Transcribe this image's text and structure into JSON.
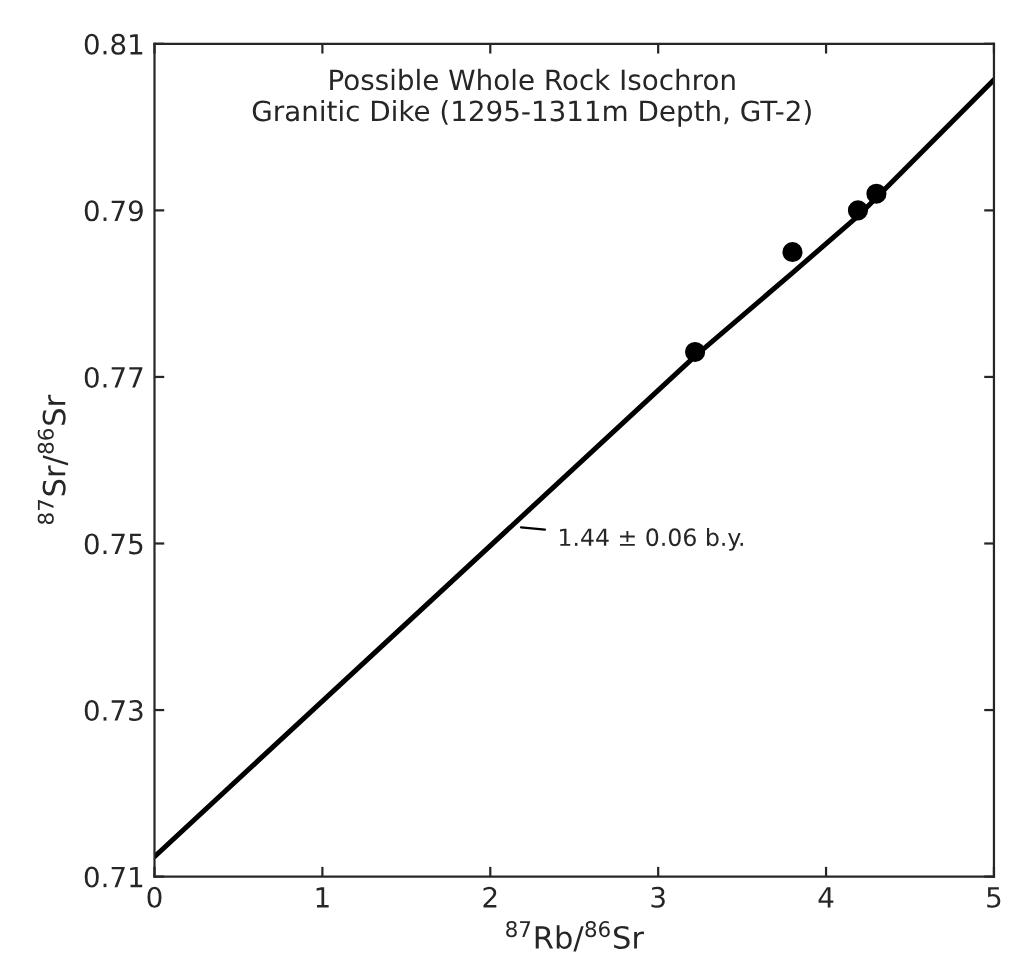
{
  "chart_data": {
    "type": "scatter",
    "title": "Possible Whole Rock Isochron\nGranitic Dike (1295-1311m Depth, GT-2)",
    "xlabel": "$^{87}$Rb/$^{86}$Sr",
    "ylabel": "$^{87}$Sr/$^{86}$Sr",
    "series": [
      {
        "color": "#000000",
        "x": [
          3.22,
          3.8,
          4.19,
          4.3
        ],
        "values": [
          0.773,
          0.785,
          0.79,
          0.792
        ],
        "marker": "circle"
      },
      {
        "type": "line",
        "color": "#000000",
        "x": [
          0,
          3.22,
          3.8,
          4.2,
          5
        ],
        "values": [
          0.7124,
          0.7725,
          0.7825,
          0.7895,
          0.8057
        ],
        "line_style": "solid",
        "marker": "none"
      }
    ],
    "annotations": [
      {
        "text": "1.44 ± 0.06 b.y.",
        "x": 2.15,
        "y": 0.752
      }
    ],
    "xlim": [
      0,
      5
    ],
    "ylim": [
      0.71,
      0.81
    ],
    "xticks": [
      0,
      1,
      2,
      3,
      4,
      5
    ],
    "yticks": [
      0.71,
      0.73,
      0.75,
      0.77,
      0.79,
      0.81
    ],
    "grid": false,
    "legend": false
  }
}
